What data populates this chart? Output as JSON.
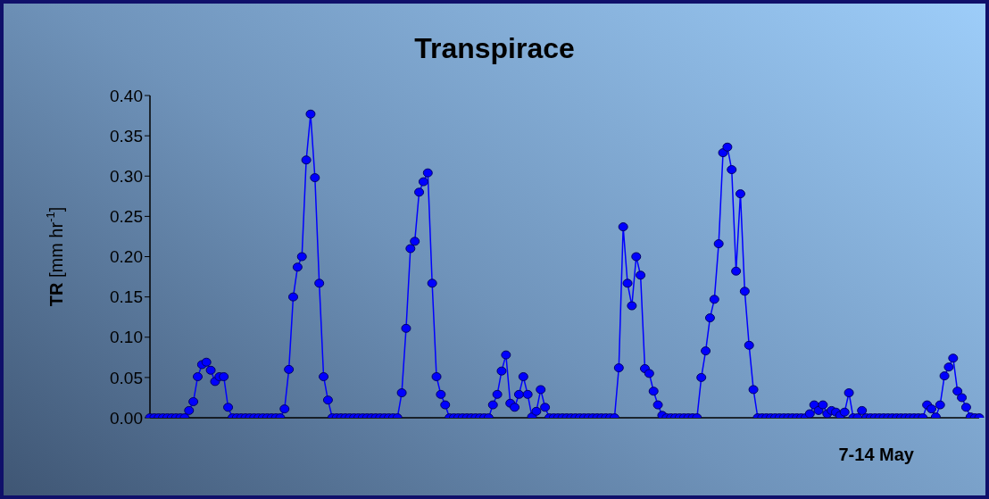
{
  "chart_data": {
    "type": "line",
    "title": "Transpirace",
    "xlabel": "7-14 May",
    "ylabel": "TR [mm hr$^{-1}$]",
    "categories": [
      null,
      null,
      null,
      null,
      null,
      null,
      null,
      null,
      null,
      null,
      null,
      null,
      null,
      null,
      null,
      null,
      null,
      null,
      null,
      null,
      null,
      null,
      null,
      null,
      null,
      null,
      null,
      null,
      null,
      null,
      null,
      null,
      null,
      null,
      null,
      null,
      null,
      null,
      null,
      null,
      null,
      null,
      null,
      null,
      null,
      null,
      null,
      null,
      null,
      null,
      null,
      null,
      null,
      null,
      null,
      null,
      null,
      null,
      null,
      null,
      null,
      null,
      null,
      null,
      null,
      null,
      null,
      null,
      null,
      null,
      null,
      null,
      null,
      null,
      null,
      null,
      null,
      null,
      null,
      null,
      null,
      null,
      null,
      null,
      null,
      null,
      null,
      null,
      null,
      null,
      null,
      null,
      null,
      null,
      null,
      null,
      null,
      null,
      null,
      null,
      null,
      null,
      null,
      null,
      null,
      null,
      null,
      null,
      null,
      null,
      null,
      null,
      null,
      null,
      null,
      null,
      null,
      null,
      null,
      null,
      null,
      null,
      null,
      null,
      null,
      null,
      null,
      null,
      null,
      null,
      null,
      null,
      null,
      null,
      null,
      null,
      null,
      null,
      null,
      null,
      null,
      null,
      null,
      null,
      null,
      null,
      null,
      null,
      null,
      null,
      null,
      null,
      null,
      null,
      null,
      null,
      null,
      null,
      null,
      null,
      null,
      null,
      null,
      null,
      null,
      null,
      null,
      null,
      null,
      null,
      null,
      null,
      null,
      null,
      null,
      null,
      null,
      null,
      null,
      null,
      null,
      null,
      null,
      null,
      null,
      null,
      null,
      null,
      null,
      null,
      null,
      null
    ],
    "ylim": [
      0,
      0.4
    ],
    "yticks": [
      {
        "value": 0,
        "label": "0.00"
      },
      {
        "value": 0.05,
        "label": "0.05"
      },
      {
        "value": 0.1,
        "label": "0.10"
      },
      {
        "value": 0.15,
        "label": "0.15"
      },
      {
        "value": 0.2,
        "label": "0.20"
      },
      {
        "value": 0.25,
        "label": "0.25"
      },
      {
        "value": 0.3,
        "label": "0.30"
      },
      {
        "value": 0.35,
        "label": "0.35"
      },
      {
        "value": 0.4,
        "label": "0.40"
      }
    ],
    "tick_labels": "y",
    "marker": "circle",
    "line_style": "solid",
    "series": [
      {
        "color": "#0000ff",
        "values": [
          0,
          0,
          0,
          0,
          0,
          0,
          0,
          0,
          0,
          0.009,
          0.02,
          0.051,
          0.066,
          0.069,
          0.059,
          0.045,
          0.051,
          0.051,
          0.013,
          0,
          0,
          0,
          0,
          0,
          0,
          0,
          0,
          0,
          0,
          0,
          0,
          0.011,
          0.06,
          0.15,
          0.187,
          0.2,
          0.32,
          0.377,
          0.298,
          0.167,
          0.051,
          0.022,
          0,
          0,
          0,
          0,
          0,
          0,
          0,
          0,
          0,
          0,
          0,
          0,
          0,
          0,
          0,
          0,
          0.031,
          0.111,
          0.21,
          0.219,
          0.28,
          0.293,
          0.304,
          0.167,
          0.051,
          0.029,
          0.016,
          0,
          0,
          0,
          0,
          0,
          0,
          0,
          0,
          0,
          0,
          0.016,
          0.029,
          0.058,
          0.078,
          0.018,
          0.013,
          0.029,
          0.051,
          0.029,
          0.001,
          0.008,
          0.035,
          0.013,
          0,
          0,
          0,
          0,
          0,
          0,
          0,
          0,
          0,
          0,
          0,
          0,
          0,
          0,
          0,
          0,
          0.062,
          0.237,
          0.167,
          0.139,
          0.2,
          0.177,
          0.061,
          0.055,
          0.033,
          0.016,
          0.003,
          0,
          0,
          0,
          0,
          0,
          0,
          0,
          0,
          0.05,
          0.083,
          0.124,
          0.147,
          0.216,
          0.329,
          0.336,
          0.308,
          0.182,
          0.278,
          0.157,
          0.09,
          0.035,
          0,
          0,
          0,
          0,
          0,
          0,
          0,
          0,
          0,
          0,
          0,
          0,
          0.005,
          0.016,
          0.009,
          0.016,
          0.005,
          0.009,
          0.007,
          0.003,
          0.007,
          0.031,
          0,
          0,
          0.009,
          0,
          0,
          0,
          0,
          0,
          0,
          0,
          0,
          0,
          0,
          0,
          0,
          0,
          0,
          0.016,
          0.011,
          0.001,
          0.016,
          0.052,
          0.063,
          0.074,
          0.033,
          0.025,
          0.013,
          0.001,
          0,
          0
        ]
      }
    ]
  }
}
